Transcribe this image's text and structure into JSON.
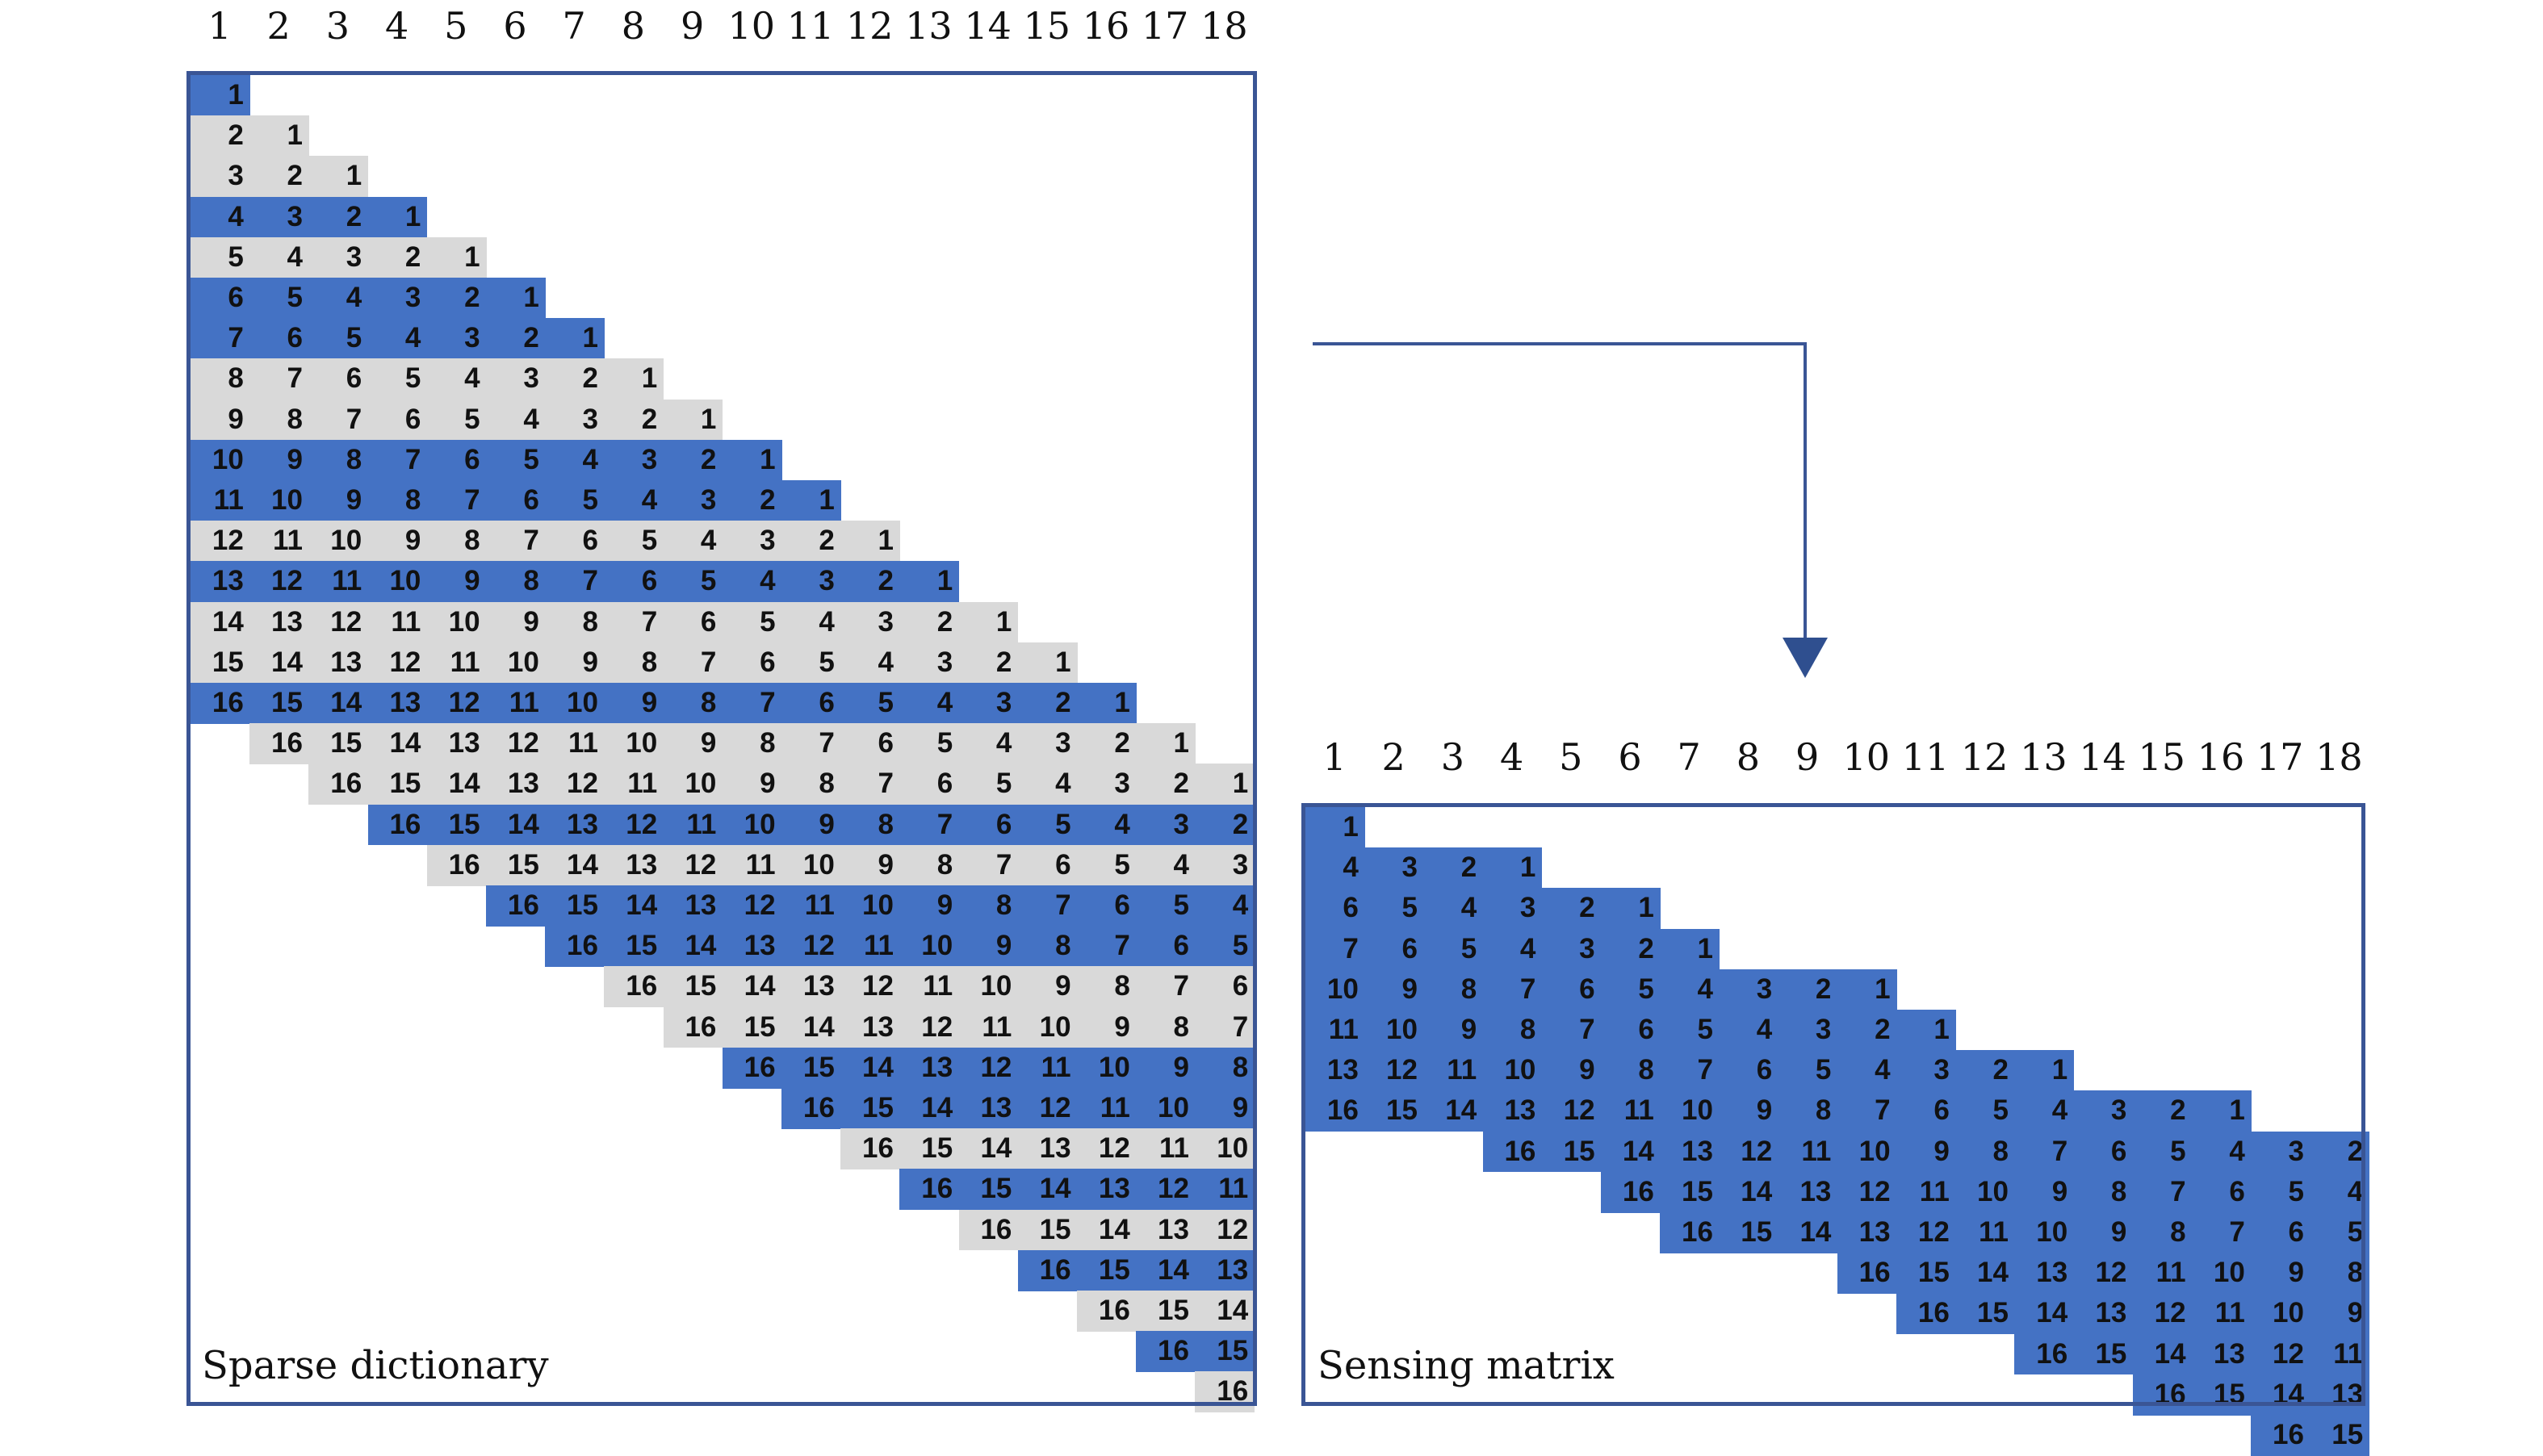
{
  "colors": {
    "highlight": "#4472c4",
    "neutral": "#d9d9d9",
    "frame": "#3a5595"
  },
  "left_panel": {
    "caption": "Sparse dictionary",
    "column_numbers": [
      "1",
      "2",
      "3",
      "4",
      "5",
      "6",
      "7",
      "8",
      "9",
      "10",
      "11",
      "12",
      "13",
      "14",
      "15",
      "16",
      "17",
      "18"
    ],
    "blue_rows": [
      1,
      4,
      6,
      7,
      10,
      11,
      13,
      16,
      19,
      21,
      22,
      25,
      26,
      28,
      30,
      32
    ],
    "rows_count": 33,
    "cols_count": 18,
    "band_width": 16
  },
  "right_panel": {
    "caption": "Sensing matrix",
    "column_numbers": [
      "1",
      "2",
      "3",
      "4",
      "5",
      "6",
      "7",
      "8",
      "9",
      "10",
      "11",
      "12",
      "13",
      "14",
      "15",
      "16",
      "17",
      "18"
    ],
    "selected_rows": [
      1,
      4,
      6,
      7,
      10,
      11,
      13,
      16,
      19,
      21,
      22,
      25,
      26,
      28,
      30,
      32
    ],
    "cols_count": 18,
    "band_width": 16
  },
  "arrow": {
    "icon": "arrow-down-icon"
  }
}
